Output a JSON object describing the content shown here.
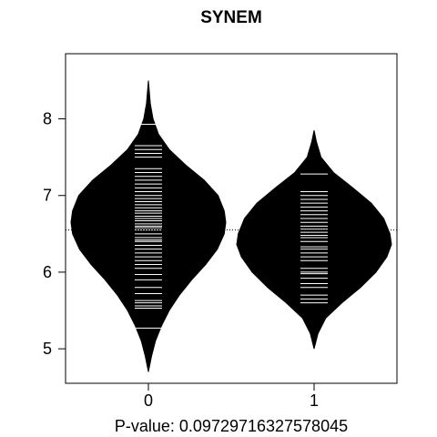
{
  "chart_data": {
    "type": "beanplot",
    "title": "SYNEM",
    "xlabel": "P-value: 0.09729716327578045",
    "ylabel": "",
    "categories": [
      "0",
      "1"
    ],
    "yticks": [
      5,
      6,
      7,
      8
    ],
    "ylim": [
      4.55,
      8.85
    ],
    "grid": false,
    "overall_mean": 6.55,
    "beans": [
      {
        "category": "0",
        "mean": 6.65,
        "min": 4.7,
        "max": 8.5,
        "density_y": [
          4.7,
          4.9,
          5.1,
          5.3,
          5.5,
          5.7,
          5.9,
          6.1,
          6.3,
          6.5,
          6.65,
          6.8,
          7.0,
          7.2,
          7.4,
          7.6,
          7.8,
          8.0,
          8.2,
          8.5
        ],
        "density_width": [
          0.0,
          0.04,
          0.09,
          0.17,
          0.27,
          0.4,
          0.56,
          0.74,
          0.89,
          0.98,
          1.0,
          0.98,
          0.9,
          0.72,
          0.48,
          0.27,
          0.13,
          0.06,
          0.025,
          0.0
        ],
        "values": [
          5.27,
          5.53,
          5.56,
          5.6,
          5.63,
          5.72,
          5.8,
          5.9,
          5.97,
          6.05,
          6.1,
          6.15,
          6.2,
          6.25,
          6.3,
          6.35,
          6.4,
          6.42,
          6.45,
          6.5,
          6.55,
          6.58,
          6.6,
          6.63,
          6.67,
          6.7,
          6.73,
          6.77,
          6.8,
          6.84,
          6.88,
          6.92,
          6.96,
          7.0,
          7.05,
          7.1,
          7.15,
          7.2,
          7.25,
          7.3,
          7.35,
          7.5,
          7.55,
          7.6,
          7.65,
          7.93
        ]
      },
      {
        "category": "1",
        "mean": 6.36,
        "min": 5.0,
        "max": 7.85,
        "density_y": [
          5.0,
          5.2,
          5.4,
          5.6,
          5.8,
          6.0,
          6.2,
          6.36,
          6.5,
          6.7,
          6.9,
          7.1,
          7.3,
          7.5,
          7.7,
          7.85
        ],
        "density_width": [
          0.0,
          0.05,
          0.15,
          0.36,
          0.6,
          0.8,
          0.94,
          1.0,
          0.98,
          0.9,
          0.74,
          0.5,
          0.25,
          0.09,
          0.03,
          0.0
        ],
        "values": [
          5.6,
          5.65,
          5.7,
          5.8,
          5.85,
          5.92,
          5.98,
          6.0,
          6.05,
          6.15,
          6.2,
          6.25,
          6.3,
          6.33,
          6.36,
          6.4,
          6.45,
          6.48,
          6.52,
          6.56,
          6.6,
          6.65,
          6.7,
          6.75,
          6.8,
          6.85,
          6.9,
          6.95,
          7.0,
          7.05,
          7.28
        ]
      }
    ]
  },
  "colors": {
    "bean_fill": "#000000",
    "beanline": "#ffffff",
    "axis": "#000000",
    "background": "#ffffff"
  }
}
